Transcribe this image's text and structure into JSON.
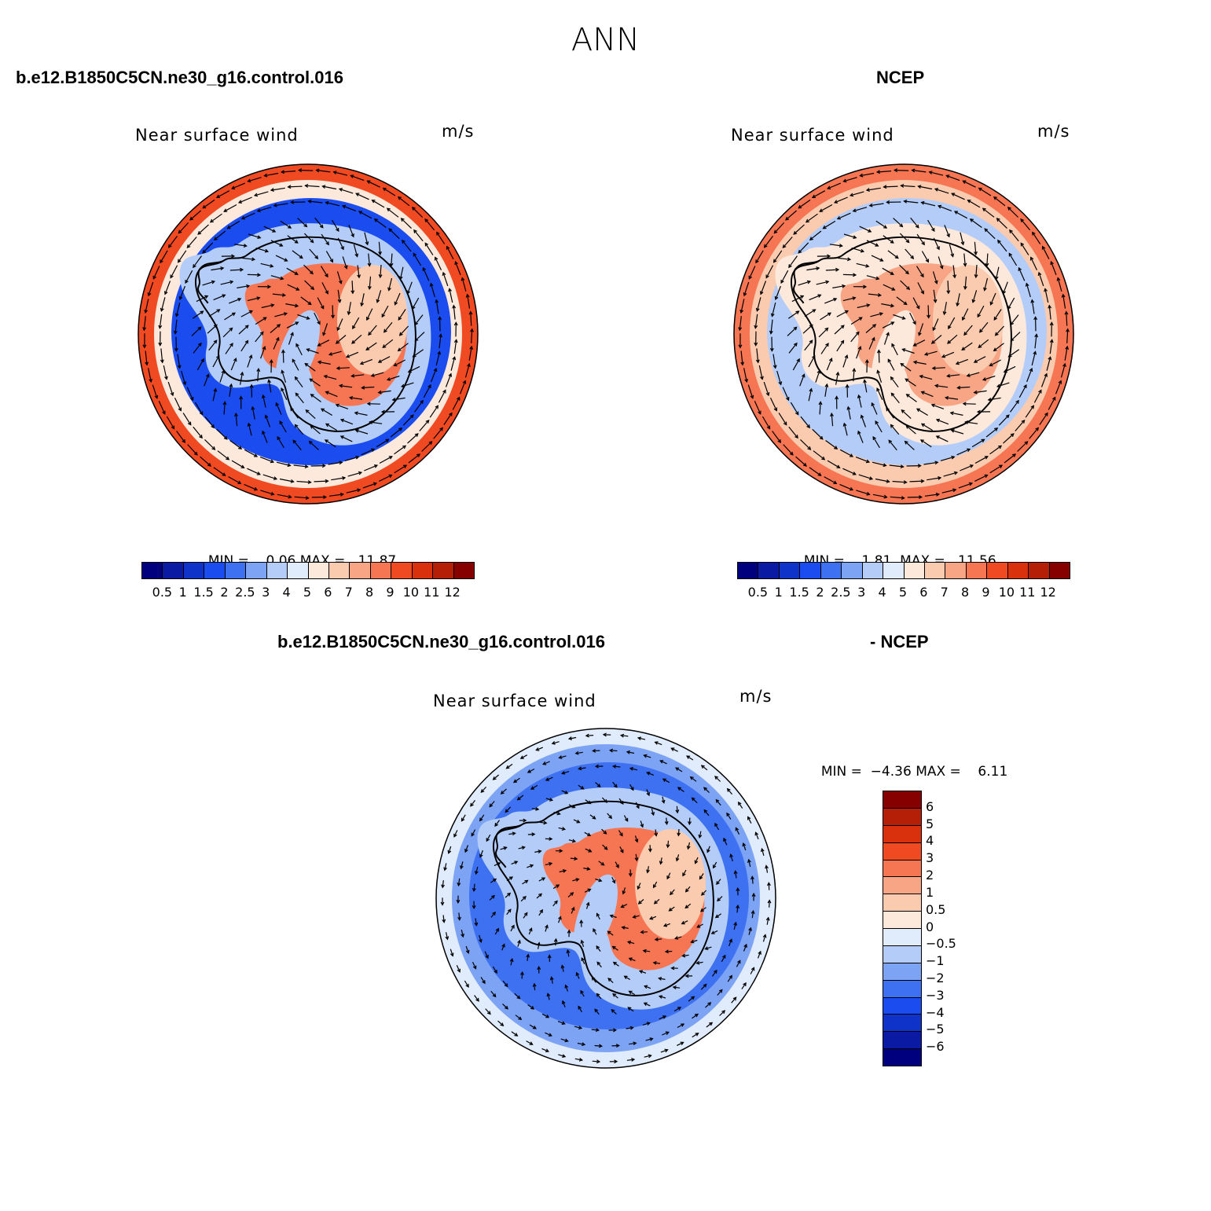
{
  "main_title": "ANN",
  "colors": {
    "abs_scale": [
      "#00007f",
      "#0a1aa3",
      "#0f33c9",
      "#1a4cf0",
      "#3d71f2",
      "#7da3f5",
      "#b4cdf8",
      "#e0ecfb",
      "#fde9dc",
      "#fbcbb0",
      "#f8a586",
      "#f67552",
      "#f04a23",
      "#d9300e",
      "#b51f07",
      "#870000"
    ],
    "diff_scale": [
      "#870000",
      "#b51f07",
      "#d9300e",
      "#f04a23",
      "#f67552",
      "#f8a586",
      "#fbcbb0",
      "#fde9dc",
      "#e0ecfb",
      "#b4cdf8",
      "#7da3f5",
      "#3d71f2",
      "#1a4cf0",
      "#0f33c9",
      "#0a1aa3",
      "#00007f"
    ]
  },
  "chart_data": [
    {
      "type": "heatmap",
      "name": "model",
      "case_label": "b.e12.B1850C5CN.ne30_g16.control.016",
      "title": "Near surface wind",
      "units": "m/s",
      "minmax": {
        "min_label": "MIN =",
        "min": "0.06",
        "max_label": "MAX =",
        "max": "11.87"
      },
      "levels": [
        "0.5",
        "1",
        "1.5",
        "2",
        "2.5",
        "3",
        "4",
        "5",
        "6",
        "7",
        "8",
        "9",
        "10",
        "11",
        "12"
      ],
      "fields": {
        "ocean_ring": 9.5,
        "inner_band": 1.5,
        "coast": 3.5,
        "interior": 8.5
      }
    },
    {
      "type": "heatmap",
      "name": "obs",
      "case_label": "NCEP",
      "title": "Near surface wind",
      "units": "m/s",
      "minmax": {
        "min_label": "MIN =",
        "min": "1.81",
        "max_label": "MAX =",
        "max": "11.56"
      },
      "levels": [
        "0.5",
        "1",
        "1.5",
        "2",
        "2.5",
        "3",
        "4",
        "5",
        "6",
        "7",
        "8",
        "9",
        "10",
        "11",
        "12"
      ],
      "fields": {
        "ocean_ring": 8.5,
        "inner_band": 3.5,
        "coast": 5.0,
        "interior": 7.5
      }
    },
    {
      "type": "heatmap",
      "name": "diff",
      "case_label": "b.e12.B1850C5CN.ne30_g16.control.016",
      "case_label_2": "- NCEP",
      "title": "Near surface wind",
      "units": "m/s",
      "minmax": {
        "min_label": "MIN =",
        "min": "−4.36",
        "max_label": "MAX =",
        "max": "6.11"
      },
      "levels": [
        "6",
        "5",
        "4",
        "3",
        "2",
        "1",
        "0.5",
        "0",
        "−0.5",
        "−1",
        "−2",
        "−3",
        "−4",
        "−5",
        "−6"
      ],
      "fields": {
        "ocean_ring": -0.5,
        "inner_band": -2.5,
        "coast": -1.0,
        "interior": 2.5
      }
    }
  ]
}
